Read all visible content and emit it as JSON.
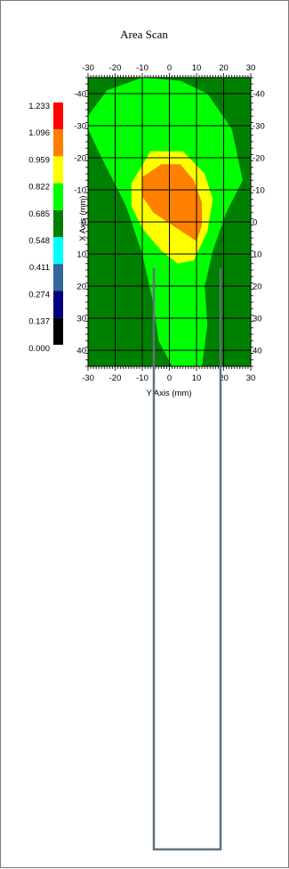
{
  "chart_data": {
    "type": "heatmap",
    "title": "Area Scan",
    "xlabel": "Y Axis (mm)",
    "ylabel": "X Axis (mm)",
    "xlim": [
      -30,
      30
    ],
    "ylim": [
      -45,
      45
    ],
    "x_ticks_bottom": [
      "-30",
      "-20",
      "-10",
      "0",
      "10",
      "20",
      "30"
    ],
    "x_ticks_top": [
      "-30",
      "-20",
      "-10",
      "0",
      "10",
      "20",
      "30"
    ],
    "y_ticks_left": [
      "-40",
      "-30",
      "-20",
      "-10",
      "0",
      "10",
      "20",
      "30",
      "40"
    ],
    "y_ticks_right": [
      "-40",
      "-30",
      "-20",
      "-10",
      "0",
      "10",
      "20",
      "30",
      "40"
    ],
    "grid": true,
    "legend": {
      "placement": "left",
      "levels": [
        {
          "value": "1.233",
          "color": "#ff0000"
        },
        {
          "value": "1.096",
          "color": "#ff8000"
        },
        {
          "value": "0.959",
          "color": "#ffff00"
        },
        {
          "value": "0.822",
          "color": "#00ff00"
        },
        {
          "value": "0.685",
          "color": "#008000"
        },
        {
          "value": "0.548",
          "color": "#00ffff"
        },
        {
          "value": "0.411",
          "color": "#336699"
        },
        {
          "value": "0.274",
          "color": "#000080"
        },
        {
          "value": "0.137",
          "color": "#000000"
        },
        {
          "value": "0.000",
          "color": ""
        }
      ]
    },
    "contours": [
      {
        "level": "0.685",
        "color": "#008000",
        "points": [
          [
            -30,
            -45
          ],
          [
            30,
            -45
          ],
          [
            30,
            45
          ],
          [
            -30,
            45
          ]
        ]
      },
      {
        "level": "0.822",
        "color": "#00ff00",
        "points": [
          [
            -10,
            -45
          ],
          [
            4,
            -44
          ],
          [
            14,
            -40
          ],
          [
            23,
            -29
          ],
          [
            27,
            -13
          ],
          [
            21,
            -3
          ],
          [
            16,
            9
          ],
          [
            13,
            20
          ],
          [
            14,
            32
          ],
          [
            12,
            45
          ],
          [
            1,
            45
          ],
          [
            -4,
            37
          ],
          [
            -6,
            25
          ],
          [
            -10,
            10
          ],
          [
            -16,
            -5
          ],
          [
            -25,
            -20
          ],
          [
            -30,
            -29
          ],
          [
            -30,
            -33
          ],
          [
            -23,
            -41
          ]
        ]
      },
      {
        "level": "0.959",
        "color": "#ffff00",
        "points": [
          [
            -7,
            -22
          ],
          [
            5,
            -22
          ],
          [
            13,
            -15
          ],
          [
            16,
            -7
          ],
          [
            14,
            3
          ],
          [
            9,
            12
          ],
          [
            3,
            13
          ],
          [
            -3,
            9
          ],
          [
            -10,
            2
          ],
          [
            -14,
            -5
          ],
          [
            -14,
            -12
          ]
        ]
      },
      {
        "level": "1.096",
        "color": "#ff8000",
        "points": [
          [
            -3,
            -18
          ],
          [
            4,
            -18
          ],
          [
            9,
            -13
          ],
          [
            12,
            -6
          ],
          [
            12,
            1
          ],
          [
            10,
            6
          ],
          [
            1,
            1
          ],
          [
            -6,
            -3
          ],
          [
            -10,
            -8
          ],
          [
            -10,
            -14
          ]
        ]
      }
    ]
  }
}
